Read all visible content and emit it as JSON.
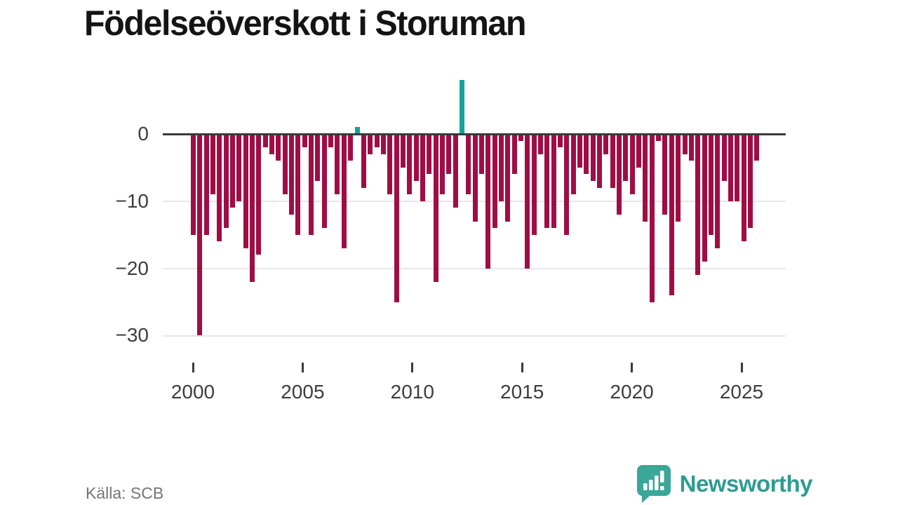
{
  "title": "Födelseöverskott i Storuman",
  "source_label": "Källa: SCB",
  "brand": {
    "name": "Newsworthy",
    "logo_icon": "speech-bubble-bar-chart-icon"
  },
  "colors": {
    "bar_negative": "#a00d45",
    "bar_positive": "#16a1a0",
    "axis": "#3a3a3a",
    "grid": "#e7e7e7",
    "tick_text": "#3d3d3d",
    "muted_text": "#757575",
    "brand_teal": "#2d9c92",
    "title_text": "#141414"
  },
  "chart_data": {
    "type": "bar",
    "title": "Födelseöverskott i Storuman",
    "xlabel": "",
    "ylabel": "",
    "x_axis": {
      "tick_labels": [
        "2000",
        "2005",
        "2010",
        "2015",
        "2020",
        "2025"
      ],
      "range_years": [
        1998.6,
        2027.0
      ]
    },
    "y_axis": {
      "tick_labels": [
        "0",
        "−10",
        "−20",
        "−30"
      ],
      "tick_values": [
        0,
        -10,
        -20,
        -30
      ],
      "ylim": [
        -31,
        9
      ]
    },
    "grid": "horizontal",
    "legend": "none",
    "series_start_year": 2000.0,
    "series_step_years": 0.2966,
    "values": [
      -15,
      -30,
      -15,
      -9,
      -16,
      -14,
      -11,
      -10,
      -17,
      -22,
      -18,
      -2,
      -3,
      -4,
      -9,
      -12,
      -15,
      -2,
      -15,
      -7,
      -14,
      -2,
      -9,
      -17,
      -4,
      1,
      -8,
      -3,
      -2,
      -3,
      -9,
      -25,
      -5,
      -9,
      -7,
      -10,
      -6,
      -22,
      -9,
      -6,
      -11,
      8,
      -9,
      -13,
      -6,
      -20,
      -14,
      -10,
      -13,
      -6,
      -1,
      -20,
      -15,
      -3,
      -14,
      -14,
      -2,
      -15,
      -9,
      -5,
      -6,
      -7,
      -8,
      -3,
      -8,
      -12,
      -7,
      -9,
      -5,
      -13,
      -25,
      -1,
      -12,
      -24,
      -13,
      -3,
      -4,
      -21,
      -19,
      -15,
      -17,
      -7,
      -10,
      -10,
      -16,
      -14,
      -4
    ],
    "positive_value_indices": [
      25,
      41
    ],
    "notes": "bars below zero in crimson, bars above zero in teal"
  }
}
